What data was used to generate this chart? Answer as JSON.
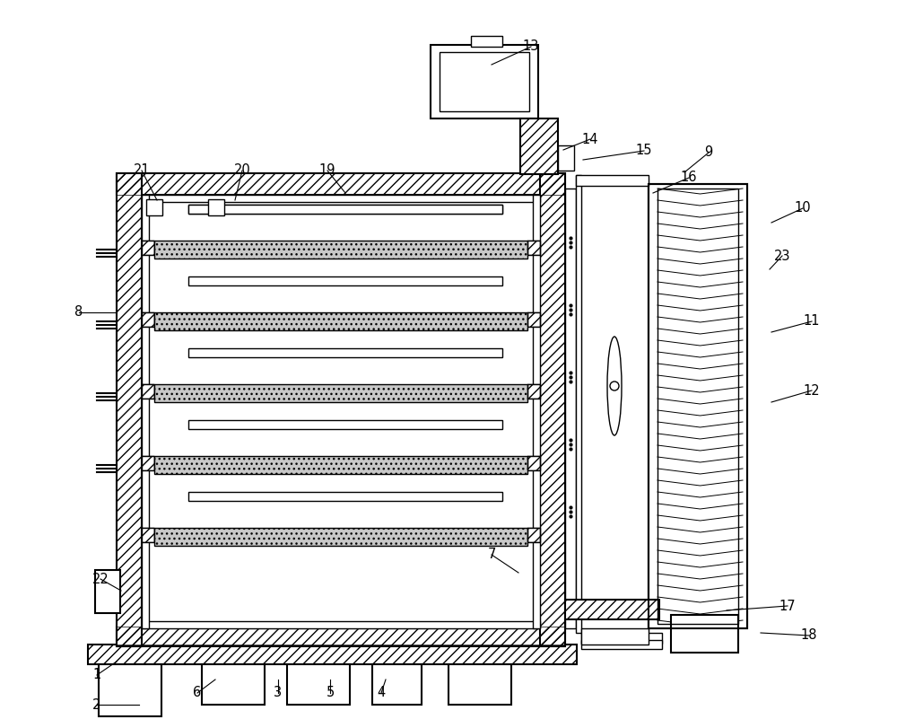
{
  "bg_color": "#ffffff",
  "line_color": "#000000",
  "label_fontsize": 10.5,
  "labels_data": [
    [
      1,
      108,
      752,
      130,
      737
    ],
    [
      2,
      108,
      785,
      155,
      785
    ],
    [
      3,
      310,
      772,
      310,
      757
    ],
    [
      4,
      425,
      772,
      430,
      757
    ],
    [
      5,
      368,
      772,
      368,
      757
    ],
    [
      6,
      220,
      772,
      240,
      757
    ],
    [
      7,
      548,
      618,
      578,
      638
    ],
    [
      8,
      88,
      348,
      130,
      348
    ],
    [
      9,
      790,
      170,
      763,
      192
    ],
    [
      10,
      895,
      232,
      860,
      248
    ],
    [
      11,
      905,
      358,
      860,
      370
    ],
    [
      12,
      905,
      435,
      860,
      448
    ],
    [
      13,
      592,
      52,
      548,
      72
    ],
    [
      14,
      658,
      155,
      628,
      167
    ],
    [
      15,
      718,
      168,
      650,
      178
    ],
    [
      16,
      768,
      198,
      728,
      215
    ],
    [
      17,
      878,
      675,
      810,
      680
    ],
    [
      18,
      902,
      708,
      848,
      705
    ],
    [
      19,
      365,
      190,
      385,
      215
    ],
    [
      20,
      270,
      190,
      262,
      223
    ],
    [
      21,
      158,
      190,
      175,
      223
    ],
    [
      22,
      112,
      645,
      135,
      658
    ],
    [
      23,
      872,
      285,
      858,
      300
    ]
  ]
}
